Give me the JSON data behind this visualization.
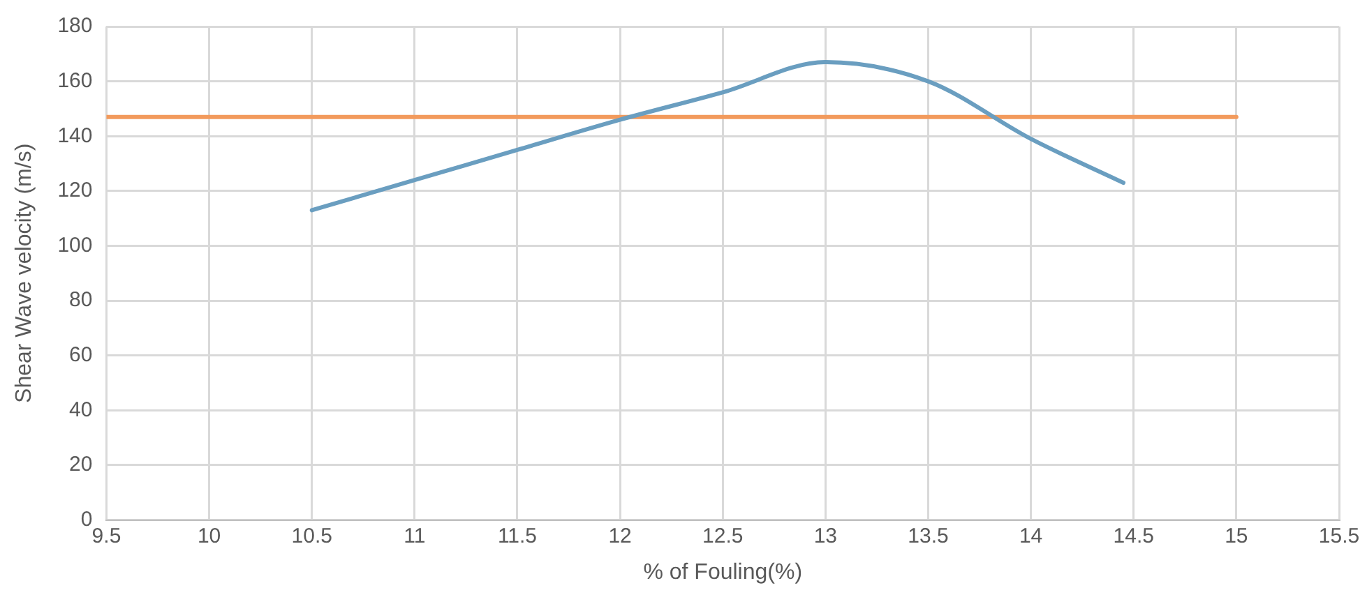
{
  "chart_data": {
    "type": "line",
    "xlabel": "% of Fouling(%)",
    "ylabel": "Shear Wave velocity (m/s)",
    "series": [
      {
        "color": "#6a9ec0",
        "x": [
          10.5,
          11,
          11.5,
          12,
          12.5,
          13,
          13.5,
          14,
          14.45
        ],
        "values": [
          113,
          124,
          135,
          146,
          156,
          167,
          160,
          139,
          123
        ]
      },
      {
        "color": "#f29a5c",
        "x": [
          9.5,
          15
        ],
        "values": [
          147,
          147
        ]
      }
    ],
    "xlim": [
      9.5,
      15.5
    ],
    "xticks": [
      9.5,
      10,
      10.5,
      11,
      11.5,
      12,
      12.5,
      13,
      13.5,
      14,
      14.5,
      15,
      15.5
    ],
    "ylim": [
      0,
      180
    ],
    "yticks": [
      0,
      20,
      40,
      60,
      80,
      100,
      120,
      140,
      160,
      180
    ],
    "grid": true,
    "legend": false,
    "marker": "none",
    "line_style": "solid"
  }
}
